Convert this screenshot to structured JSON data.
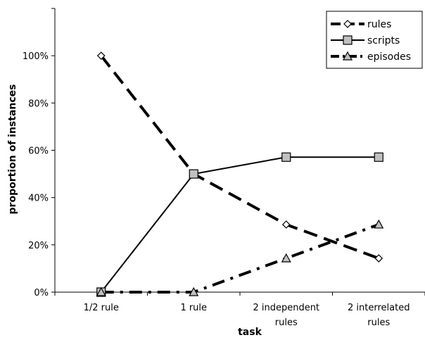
{
  "chart_data": {
    "type": "line",
    "categories": [
      [
        "1/2 rule"
      ],
      [
        "1 rule"
      ],
      [
        "2 independent",
        "rules"
      ],
      [
        "2 interrelated",
        "rules"
      ]
    ],
    "xlabel": "task",
    "ylabel": "proportion of instances",
    "ylim": [
      0,
      1.2
    ],
    "yticks": [
      0,
      0.2,
      0.4,
      0.6,
      0.8,
      1.0
    ],
    "ytick_labels": [
      "0%",
      "20%",
      "40%",
      "60%",
      "80%",
      "100%"
    ],
    "grid": false,
    "legend_position": "top-right",
    "series": [
      {
        "name": "rules",
        "values": [
          1.0,
          0.5,
          0.286,
          0.143
        ],
        "marker": "diamond",
        "dash": "long-dash",
        "stroke_width": 4
      },
      {
        "name": "scripts",
        "values": [
          0.0,
          0.5,
          0.571,
          0.571
        ],
        "marker": "square",
        "dash": "solid",
        "stroke_width": 2
      },
      {
        "name": "episodes",
        "values": [
          0.0,
          0.0,
          0.143,
          0.286
        ],
        "marker": "triangle",
        "dash": "dash-dot",
        "stroke_width": 4
      }
    ]
  }
}
